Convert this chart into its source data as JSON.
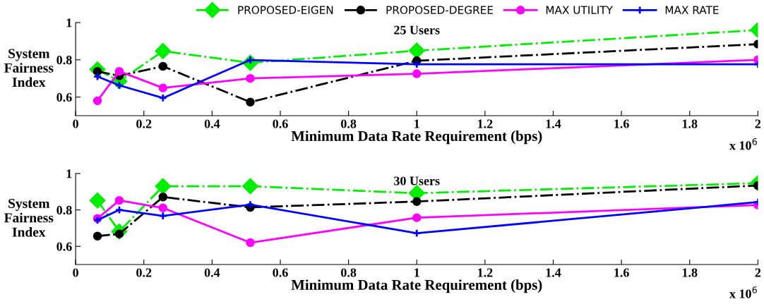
{
  "chart_data": [
    {
      "type": "line",
      "title": "25 Users",
      "xlabel": "Minimum Data Rate Requirement (bps)",
      "ylabel": "System\nFairness\nIndex",
      "x": [
        0.064,
        0.128,
        0.256,
        0.512,
        1,
        2
      ],
      "xlim": [
        0,
        2
      ],
      "xticks": [
        0,
        0.2,
        0.4,
        0.6,
        0.8,
        1,
        1.2,
        1.4,
        1.6,
        1.8,
        2
      ],
      "ylim": [
        0.5,
        1
      ],
      "yticks": [
        0.6,
        0.8,
        1
      ],
      "grid": false,
      "legend": "top",
      "annotations": [
        "x 10$^{6}$"
      ],
      "series": [
        {
          "name": "PROPOSED-EIGEN",
          "color": "#00ee00",
          "marker": "diamond",
          "line_style": "dashed",
          "values": [
            0.748,
            0.685,
            0.847,
            0.784,
            0.849,
            0.96
          ]
        },
        {
          "name": "PROPOSED-DEGREE",
          "color": "#000000",
          "marker": "circle",
          "line_style": "dashed",
          "values": [
            0.738,
            0.714,
            0.765,
            0.573,
            0.795,
            0.884
          ]
        },
        {
          "name": "MAX UTILITY",
          "color": "#ff00ff",
          "marker": "circle",
          "line_style": "solid",
          "values": [
            0.58,
            0.738,
            0.649,
            0.7,
            0.725,
            0.8
          ]
        },
        {
          "name": "MAX RATE",
          "color": "#0000ff",
          "marker": "cross",
          "line_style": "solid",
          "values": [
            0.71,
            0.663,
            0.595,
            0.799,
            0.776,
            0.776
          ]
        }
      ]
    },
    {
      "type": "line",
      "title": "30 Users",
      "xlabel": "Minimum Data Rate Requirement (bps)",
      "ylabel": "System\nFairness\nIndex",
      "x": [
        0.064,
        0.128,
        0.256,
        0.512,
        1,
        2
      ],
      "xlim": [
        0,
        2
      ],
      "xticks": [
        0,
        0.2,
        0.4,
        0.6,
        0.8,
        1,
        1.2,
        1.4,
        1.6,
        1.8,
        2
      ],
      "ylim": [
        0.5,
        1
      ],
      "yticks": [
        0.6,
        0.8,
        1
      ],
      "grid": false,
      "annotations": [
        "x 10$^{6}$"
      ],
      "series": [
        {
          "color": "#00ee00",
          "marker": "diamond",
          "line_style": "dashed",
          "values": [
            0.852,
            0.681,
            0.93,
            0.93,
            0.892,
            0.947
          ]
        },
        {
          "color": "#000000",
          "marker": "circle",
          "line_style": "dashed",
          "values": [
            0.656,
            0.668,
            0.871,
            0.814,
            0.846,
            0.934
          ]
        },
        {
          "color": "#ff00ff",
          "marker": "circle",
          "line_style": "solid",
          "values": [
            0.753,
            0.852,
            0.811,
            0.62,
            0.757,
            0.827
          ]
        },
        {
          "color": "#0000ff",
          "marker": "cross",
          "line_style": "solid",
          "values": [
            0.744,
            0.8,
            0.767,
            0.829,
            0.672,
            0.843
          ]
        }
      ]
    }
  ]
}
